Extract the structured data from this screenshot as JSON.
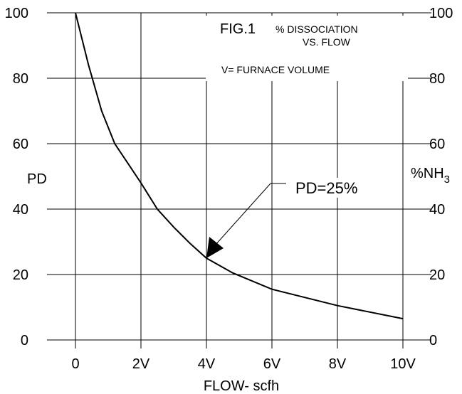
{
  "chart_data": {
    "type": "line",
    "title": "FIG.1",
    "subtitle_line1": "% DISSOCIATION",
    "subtitle_line2": "VS. FLOW",
    "note": "V= FURNACE VOLUME",
    "xlabel": "FLOW- scfh",
    "ylabel_left": "PD",
    "ylabel_right_prefix": "%NH",
    "ylabel_right_sub": "3",
    "x_ticks": [
      "0",
      "2V",
      "4V",
      "6V",
      "8V",
      "10V"
    ],
    "y_ticks_left": [
      "0",
      "20",
      "40",
      "60",
      "80",
      "100"
    ],
    "y_ticks_right": [
      "100",
      "80",
      "60",
      "40",
      "20",
      "0"
    ],
    "xlim": [
      0,
      10
    ],
    "ylim": [
      0,
      100
    ],
    "grid": true,
    "series": [
      {
        "x": [
          0,
          0.4,
          0.8,
          1.2,
          1.6,
          2.0,
          2.5,
          3.0,
          3.5,
          4.0,
          4.8,
          6.0,
          8.0,
          10.0
        ],
        "y": [
          100,
          84,
          70,
          60,
          54,
          48,
          40,
          34.5,
          29.5,
          25,
          20.5,
          15.5,
          10.5,
          6.5
        ]
      }
    ],
    "annotation": {
      "text": "PD=25%",
      "point": [
        4.0,
        25
      ]
    }
  }
}
